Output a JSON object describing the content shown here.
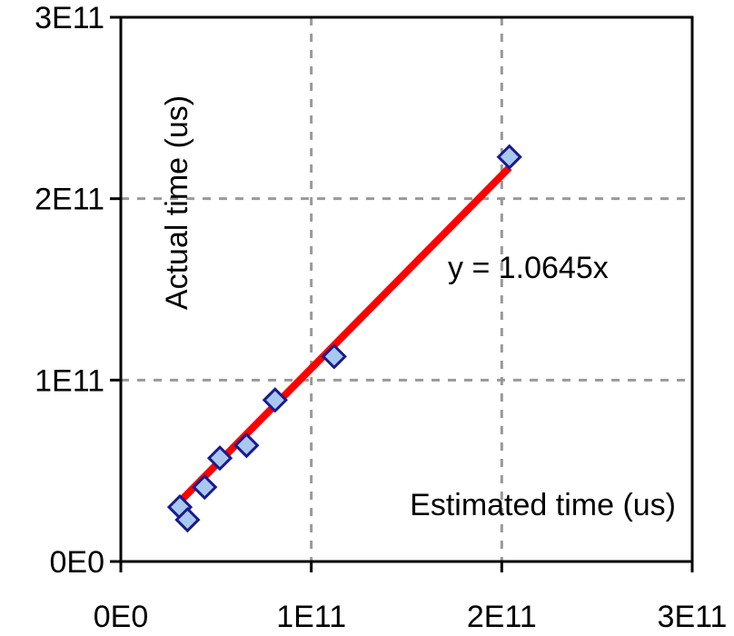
{
  "chart_data": {
    "type": "scatter",
    "xlabel": "Estimated time (us)",
    "ylabel": "Actual time (us)",
    "xlim": [
      0,
      300000000000
    ],
    "ylim": [
      0,
      300000000000
    ],
    "x_ticks": [
      "0E0",
      "1E11",
      "2E11",
      "3E11"
    ],
    "y_ticks": [
      "0E0",
      "1E11",
      "2E11",
      "3E11"
    ],
    "grid": true,
    "grid_style": "dashed",
    "series": [
      {
        "marker": "diamond",
        "color": "#a9c8ef",
        "edge_color": "#1a1a8c",
        "points": [
          {
            "x": 31000000000,
            "y": 30000000000
          },
          {
            "x": 35000000000,
            "y": 23000000000
          },
          {
            "x": 44000000000,
            "y": 41000000000
          },
          {
            "x": 52000000000,
            "y": 57000000000
          },
          {
            "x": 66000000000,
            "y": 64000000000
          },
          {
            "x": 81000000000,
            "y": 89000000000
          },
          {
            "x": 112000000000,
            "y": 113000000000
          },
          {
            "x": 204000000000,
            "y": 223000000000
          }
        ]
      }
    ],
    "trendline": {
      "equation": "y = 1.0645x",
      "slope": 1.0645,
      "x_range": [
        31000000000,
        204000000000
      ],
      "color": "#ff0000"
    }
  }
}
